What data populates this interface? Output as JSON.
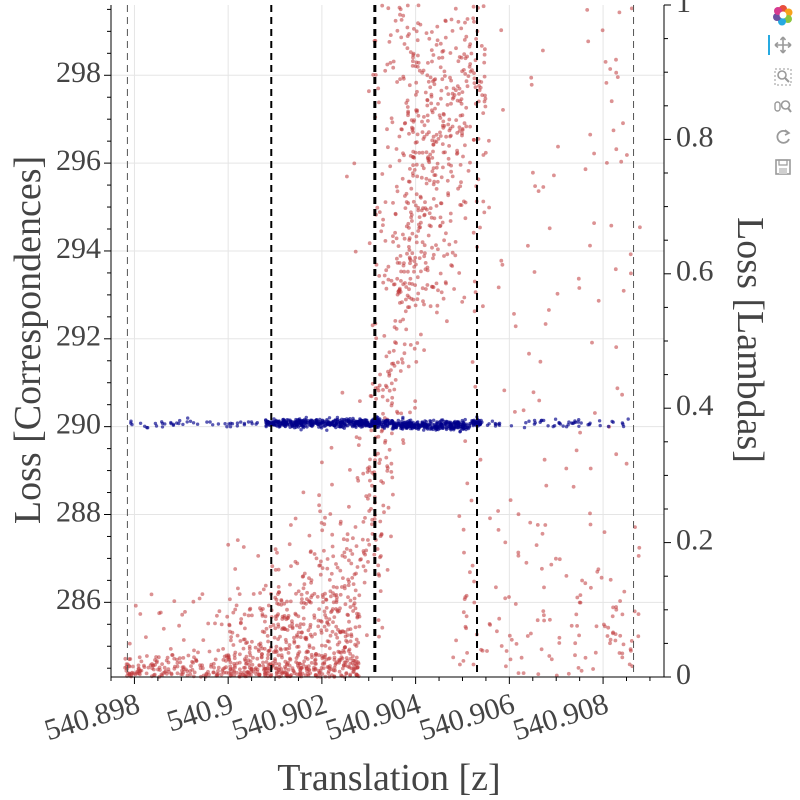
{
  "chart_data": {
    "type": "scatter",
    "xlabel": "Translation [z]",
    "ylabel_left": "Loss [Correspondences]",
    "ylabel_right": "Loss [Lambdas]",
    "xlim": [
      540.8975,
      540.9093
    ],
    "ylim_left": [
      284.3,
      299.6
    ],
    "ylim_right": [
      0,
      1
    ],
    "x_ticks": [
      540.898,
      540.9,
      540.902,
      540.904,
      540.906,
      540.908
    ],
    "x_tick_labels": [
      "540.898",
      "540.9",
      "540.902",
      "540.904",
      "540.906",
      "540.908"
    ],
    "y_left_ticks": [
      286,
      288,
      290,
      292,
      294,
      296,
      298
    ],
    "y_left_tick_labels": [
      "286",
      "288",
      "290",
      "292",
      "294",
      "296",
      "298"
    ],
    "y_right_ticks": [
      0,
      0.2,
      0.4,
      0.6,
      0.8,
      1
    ],
    "y_right_tick_labels": [
      "0",
      "0.2",
      "0.4",
      "0.6",
      "0.8",
      "1"
    ],
    "grid": true,
    "vertical_lines": [
      {
        "x": 540.89785,
        "style": "thin-dashed"
      },
      {
        "x": 540.90092,
        "style": "dashed"
      },
      {
        "x": 540.90313,
        "style": "thick-dashed"
      },
      {
        "x": 540.90531,
        "style": "dashed"
      },
      {
        "x": 540.90865,
        "style": "thin-dashed"
      }
    ],
    "series": [
      {
        "axis": "left",
        "color": "#00008b",
        "approx_points": 900,
        "x_range": [
          540.89785,
          540.90865
        ],
        "y_center": 290.08,
        "y_spread": 0.08
      },
      {
        "axis": "right",
        "color": "#c0393b",
        "approx_points": 1700,
        "x_range": [
          540.8978,
          540.9088
        ],
        "pattern": "lambda loss near 0 for z below 540.901, rising steeply between 540.902 and 540.905, reaching about 0.9-1.0 around 540.9045-540.905, then scattered sparsely at all levels beyond"
      }
    ]
  },
  "toolbar": {
    "items": [
      "bokeh-logo-icon",
      "pan-icon",
      "box-zoom-icon",
      "wheel-zoom-icon",
      "reset-icon",
      "save-icon"
    ],
    "active_color": "#26aae1"
  }
}
